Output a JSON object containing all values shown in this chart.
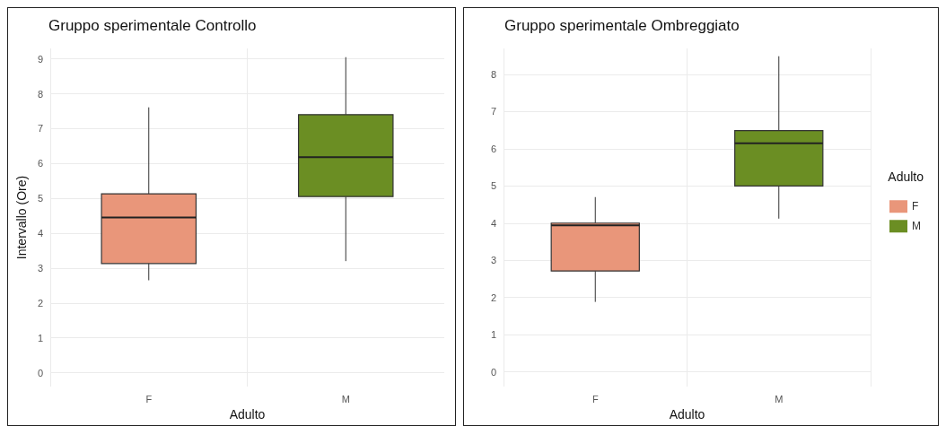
{
  "chart_data": [
    {
      "type": "box",
      "title": "Gruppo sperimentale Controllo",
      "xlabel": "Adulto",
      "ylabel": "Intervallo (Ore)",
      "categories": [
        "F",
        "M"
      ],
      "series": [
        {
          "color": "#e9967a",
          "boxes": [
            {
              "low": 2.65,
              "q1": 3.13,
              "median": 4.45,
              "q3": 5.13,
              "high": 7.61
            },
            null
          ]
        },
        {
          "color": "#6b8e23",
          "boxes": [
            null,
            {
              "low": 3.2,
              "q1": 5.05,
              "median": 6.18,
              "q3": 7.4,
              "high": 9.05
            }
          ]
        }
      ],
      "ylim": [
        -0.4,
        9.3
      ],
      "yticks": [
        0,
        1,
        2,
        3,
        4,
        5,
        6,
        7,
        8,
        9
      ],
      "grid": true,
      "legend": false
    },
    {
      "type": "box",
      "title": "Gruppo sperimentale Ombreggiato",
      "xlabel": "Adulto",
      "legend_title": "Adulto",
      "categories": [
        "F",
        "M"
      ],
      "series": [
        {
          "name": "F",
          "color": "#e9967a",
          "boxes": [
            {
              "low": 1.88,
              "q1": 2.71,
              "median": 3.94,
              "q3": 4.0,
              "high": 4.7
            },
            null
          ]
        },
        {
          "name": "M",
          "color": "#6b8e23",
          "boxes": [
            null,
            {
              "low": 4.12,
              "q1": 5.0,
              "median": 6.15,
              "q3": 6.49,
              "high": 8.49
            }
          ]
        }
      ],
      "ylim": [
        -0.4,
        8.7
      ],
      "yticks": [
        0,
        1,
        2,
        3,
        4,
        5,
        6,
        7,
        8
      ],
      "grid": true,
      "legend": "right"
    }
  ]
}
